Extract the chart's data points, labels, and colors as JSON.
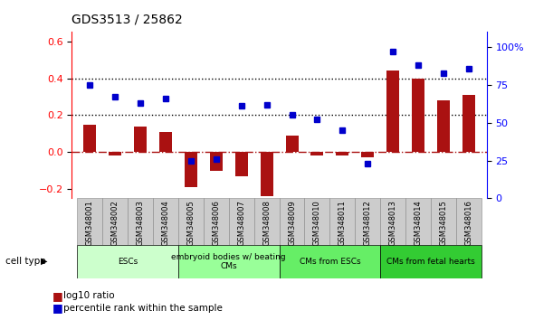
{
  "title": "GDS3513 / 25862",
  "samples": [
    "GSM348001",
    "GSM348002",
    "GSM348003",
    "GSM348004",
    "GSM348005",
    "GSM348006",
    "GSM348007",
    "GSM348008",
    "GSM348009",
    "GSM348010",
    "GSM348011",
    "GSM348012",
    "GSM348013",
    "GSM348014",
    "GSM348015",
    "GSM348016"
  ],
  "log10_ratio": [
    0.15,
    -0.02,
    0.14,
    0.11,
    -0.19,
    -0.1,
    -0.13,
    -0.24,
    0.09,
    -0.02,
    -0.02,
    -0.03,
    0.44,
    0.4,
    0.28,
    0.31
  ],
  "percentile_rank": [
    75,
    67,
    63,
    66,
    25,
    26,
    61,
    62,
    55,
    52,
    45,
    23,
    97,
    88,
    83,
    86
  ],
  "cell_types": [
    {
      "label": "ESCs",
      "start": 0,
      "end": 3,
      "color": "#ccffcc"
    },
    {
      "label": "embryoid bodies w/ beating\nCMs",
      "start": 4,
      "end": 7,
      "color": "#99ff99"
    },
    {
      "label": "CMs from ESCs",
      "start": 8,
      "end": 11,
      "color": "#66ee66"
    },
    {
      "label": "CMs from fetal hearts",
      "start": 12,
      "end": 15,
      "color": "#33cc33"
    }
  ],
  "bar_color": "#aa1111",
  "dot_color": "#0000cc",
  "left_ylim": [
    -0.25,
    0.65
  ],
  "right_ylim": [
    0,
    110
  ],
  "left_yticks": [
    -0.2,
    0.0,
    0.2,
    0.4,
    0.6
  ],
  "right_yticks": [
    0,
    25,
    50,
    75,
    100
  ],
  "right_yticklabels": [
    "0",
    "25",
    "50",
    "75",
    "100%"
  ],
  "hline_y": [
    0.2,
    0.4
  ],
  "zero_line_y": 0.0,
  "background_color": "#ffffff",
  "plot_bg": "#ffffff"
}
